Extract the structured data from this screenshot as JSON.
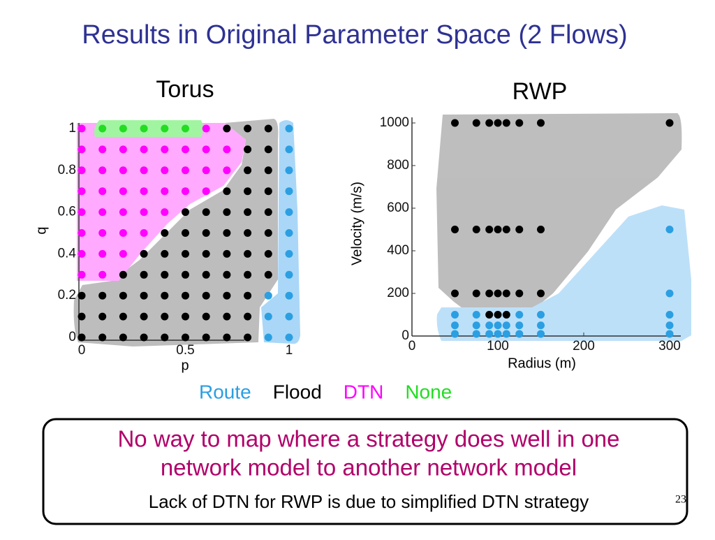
{
  "title": "Results in Original Parameter Space (2 Flows)",
  "chart_data": [
    {
      "type": "scatter",
      "title": "Torus",
      "x_label": "p",
      "y_label": "q",
      "xlim": [
        0,
        1
      ],
      "ylim": [
        0,
        1
      ],
      "xticks": [
        0,
        0.5,
        1
      ],
      "yticks": [
        0,
        0.2,
        0.4,
        0.6,
        0.8,
        1
      ],
      "series": [
        {
          "name": "Route",
          "color": "#2b9fe2",
          "x": [
            1,
            1,
            1,
            1,
            1,
            1,
            1,
            1,
            1,
            1,
            1,
            0.9,
            0.9,
            0.9
          ],
          "values": [
            0,
            0.1,
            0.2,
            0.3,
            0.4,
            0.5,
            0.6,
            0.7,
            0.8,
            0.9,
            1,
            0,
            0.1,
            0.2
          ]
        },
        {
          "name": "Flood",
          "color": "#000000",
          "x": [
            0.7,
            0.8,
            0.9,
            0.8,
            0.9,
            0.8,
            0.9,
            0.7,
            0.8,
            0.9,
            0.5,
            0.6,
            0.7,
            0.8,
            0.9,
            0.4,
            0.5,
            0.6,
            0.7,
            0.8,
            0.9,
            0.3,
            0.4,
            0.5,
            0.6,
            0.7,
            0.8,
            0.9,
            0.2,
            0.3,
            0.4,
            0.5,
            0.6,
            0.7,
            0.8,
            0.9,
            0,
            0.1,
            0.2,
            0.3,
            0.4,
            0.5,
            0.6,
            0.7,
            0.8,
            0,
            0.1,
            0.2,
            0.3,
            0.4,
            0.5,
            0.6,
            0.7,
            0.8,
            0,
            0.1,
            0.2,
            0.3,
            0.4,
            0.5,
            0.6,
            0.7,
            0.8
          ],
          "values": [
            1,
            1,
            1,
            0.9,
            0.9,
            0.8,
            0.8,
            0.7,
            0.7,
            0.7,
            0.6,
            0.6,
            0.6,
            0.6,
            0.6,
            0.5,
            0.5,
            0.5,
            0.5,
            0.5,
            0.5,
            0.4,
            0.4,
            0.4,
            0.4,
            0.4,
            0.4,
            0.4,
            0.3,
            0.3,
            0.3,
            0.3,
            0.3,
            0.3,
            0.3,
            0.3,
            0.2,
            0.2,
            0.2,
            0.2,
            0.2,
            0.2,
            0.2,
            0.2,
            0.2,
            0.1,
            0.1,
            0.1,
            0.1,
            0.1,
            0.1,
            0.1,
            0.1,
            0.1,
            0,
            0,
            0,
            0,
            0,
            0,
            0,
            0,
            0
          ]
        },
        {
          "name": "DTN",
          "color": "#ff00ff",
          "x": [
            0,
            0.6,
            0,
            0.1,
            0.2,
            0.3,
            0.4,
            0.5,
            0.6,
            0.7,
            0,
            0.1,
            0.2,
            0.3,
            0.4,
            0.5,
            0.6,
            0.7,
            0,
            0.1,
            0.2,
            0.3,
            0.4,
            0.5,
            0.6,
            0,
            0.1,
            0.2,
            0.3,
            0.4,
            0,
            0.1,
            0.2,
            0.3,
            0,
            0.1,
            0.2,
            0,
            0.1
          ],
          "values": [
            1,
            1,
            0.9,
            0.9,
            0.9,
            0.9,
            0.9,
            0.9,
            0.9,
            0.9,
            0.8,
            0.8,
            0.8,
            0.8,
            0.8,
            0.8,
            0.8,
            0.8,
            0.7,
            0.7,
            0.7,
            0.7,
            0.7,
            0.7,
            0.7,
            0.6,
            0.6,
            0.6,
            0.6,
            0.6,
            0.5,
            0.5,
            0.5,
            0.5,
            0.4,
            0.4,
            0.4,
            0.3,
            0.3
          ]
        },
        {
          "name": "None",
          "color": "#22dd22",
          "x": [
            0.1,
            0.2,
            0.3,
            0.4,
            0.5
          ],
          "values": [
            1,
            1,
            1,
            1,
            1
          ]
        }
      ]
    },
    {
      "type": "scatter",
      "title": "RWP",
      "x_label": "Radius (m)",
      "y_label": "Velocity (m/s)",
      "xlim": [
        0,
        300
      ],
      "ylim": [
        0,
        1000
      ],
      "xticks": [
        0,
        100,
        200,
        300
      ],
      "yticks": [
        0,
        200,
        400,
        600,
        800,
        1000
      ],
      "series": [
        {
          "color": "#2b9fe2",
          "x": [
            300,
            300,
            50,
            75,
            125,
            150,
            300,
            50,
            75,
            90,
            100,
            110,
            125,
            150,
            300,
            50,
            75,
            90,
            100,
            110,
            125,
            150,
            300
          ],
          "values": [
            500,
            200,
            100,
            100,
            100,
            100,
            100,
            50,
            50,
            50,
            50,
            50,
            50,
            50,
            50,
            10,
            10,
            10,
            10,
            10,
            10,
            10,
            10
          ]
        },
        {
          "color": "#000000",
          "x": [
            50,
            75,
            90,
            100,
            110,
            125,
            150,
            300,
            50,
            75,
            90,
            100,
            110,
            125,
            150,
            50,
            75,
            90,
            100,
            110,
            125,
            150,
            90,
            100,
            110
          ],
          "values": [
            1000,
            1000,
            1000,
            1000,
            1000,
            1000,
            1000,
            1000,
            500,
            500,
            500,
            500,
            500,
            500,
            500,
            200,
            200,
            200,
            200,
            200,
            200,
            200,
            100,
            100,
            100
          ]
        }
      ]
    }
  ],
  "callout": {
    "headline": [
      "No way to map where a strategy does well in one",
      "network model to another network model"
    ],
    "note": "Lack of DTN for RWP is due to simplified DTN strategy"
  },
  "page_number": "23"
}
